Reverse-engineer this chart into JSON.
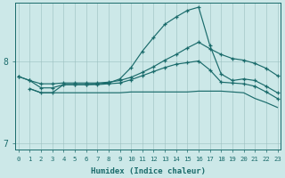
{
  "xlabel": "Humidex (Indice chaleur)",
  "bg_color": "#cce8e8",
  "grid_color": "#9bbfbf",
  "line_color": "#1a6b6b",
  "xlim": [
    -0.3,
    23.3
  ],
  "ylim": [
    6.92,
    8.72
  ],
  "yticks": [
    7,
    8
  ],
  "xticks": [
    0,
    1,
    2,
    3,
    4,
    5,
    6,
    7,
    8,
    9,
    10,
    11,
    12,
    13,
    14,
    15,
    16,
    17,
    18,
    19,
    20,
    21,
    22,
    23
  ],
  "line_peak_x": [
    0,
    1,
    2,
    3,
    4,
    5,
    6,
    7,
    8,
    9,
    10,
    11,
    12,
    13,
    14,
    15,
    16,
    17,
    18,
    19,
    20,
    21,
    22,
    23
  ],
  "line_peak_y": [
    7.82,
    7.77,
    7.68,
    7.68,
    7.72,
    7.72,
    7.72,
    7.73,
    7.74,
    7.79,
    7.93,
    8.13,
    8.3,
    8.46,
    8.55,
    8.63,
    8.67,
    8.2,
    7.85,
    7.77,
    7.79,
    7.77,
    7.7,
    7.62
  ],
  "line_upper_x": [
    0,
    1,
    2,
    3,
    4,
    5,
    6,
    7,
    8,
    9,
    10,
    11,
    12,
    13,
    14,
    15,
    16,
    17,
    18,
    19,
    20,
    21,
    22,
    23
  ],
  "line_upper_y": [
    7.82,
    7.77,
    7.73,
    7.73,
    7.74,
    7.74,
    7.74,
    7.74,
    7.75,
    7.77,
    7.81,
    7.87,
    7.94,
    8.02,
    8.09,
    8.17,
    8.24,
    8.16,
    8.09,
    8.04,
    8.02,
    7.98,
    7.92,
    7.83
  ],
  "line_mid_x": [
    1,
    2,
    3,
    4,
    5,
    6,
    7,
    8,
    9,
    10,
    11,
    12,
    13,
    14,
    15,
    16,
    17,
    18,
    19,
    20,
    21,
    22,
    23
  ],
  "line_mid_y": [
    7.67,
    7.62,
    7.62,
    7.72,
    7.72,
    7.72,
    7.72,
    7.73,
    7.74,
    7.78,
    7.83,
    7.88,
    7.93,
    7.97,
    7.99,
    8.01,
    7.9,
    7.75,
    7.74,
    7.73,
    7.7,
    7.63,
    7.55
  ],
  "line_low_x": [
    1,
    2,
    3,
    4,
    5,
    6,
    7,
    8,
    9,
    10,
    11,
    12,
    13,
    14,
    15,
    16,
    17,
    18,
    19,
    20,
    21,
    22,
    23
  ],
  "line_low_y": [
    7.67,
    7.62,
    7.62,
    7.62,
    7.62,
    7.62,
    7.62,
    7.62,
    7.62,
    7.63,
    7.63,
    7.63,
    7.63,
    7.63,
    7.63,
    7.64,
    7.64,
    7.64,
    7.63,
    7.62,
    7.55,
    7.5,
    7.44
  ]
}
